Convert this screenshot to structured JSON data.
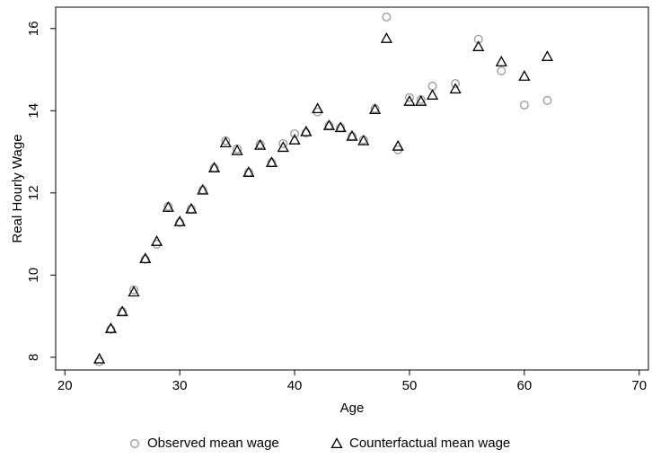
{
  "chart_data": {
    "type": "scatter",
    "x_label": "Age",
    "y_label": "Real Hourly Wage",
    "x": [
      23,
      24,
      25,
      26,
      27,
      28,
      29,
      30,
      31,
      32,
      33,
      34,
      35,
      36,
      37,
      38,
      39,
      40,
      41,
      42,
      43,
      44,
      45,
      46,
      47,
      48,
      49,
      50,
      51,
      52,
      54,
      56,
      58,
      60,
      62
    ],
    "series": [
      {
        "name": "Observed mean wage",
        "color": "#999999",
        "marker": "circle",
        "values": [
          7.89,
          8.68,
          9.11,
          9.64,
          10.38,
          10.75,
          11.67,
          11.28,
          11.61,
          12.07,
          12.61,
          13.27,
          13.07,
          12.5,
          13.18,
          12.74,
          13.2,
          13.44,
          13.46,
          13.97,
          13.64,
          13.59,
          13.38,
          13.29,
          14.05,
          16.28,
          13.05,
          14.32,
          14.27,
          14.6,
          14.66,
          15.74,
          14.97,
          14.14,
          14.25
        ]
      },
      {
        "name": "Counterfactual mean wage",
        "color": "#000000",
        "marker": "triangle",
        "values": [
          7.96,
          8.7,
          9.11,
          9.59,
          10.4,
          10.82,
          11.65,
          11.3,
          11.61,
          12.07,
          12.61,
          13.22,
          13.03,
          12.5,
          13.16,
          12.74,
          13.11,
          13.29,
          13.49,
          14.05,
          13.64,
          13.59,
          13.38,
          13.27,
          14.03,
          15.76,
          13.14,
          14.23,
          14.23,
          14.38,
          14.53,
          15.56,
          15.19,
          14.84,
          15.32
        ]
      }
    ],
    "xlim": [
      19.2,
      70.8
    ],
    "ylim": [
      7.69,
      16.52
    ],
    "xticks": [
      20,
      30,
      40,
      50,
      60,
      70
    ],
    "yticks": [
      8,
      10,
      12,
      14,
      16
    ],
    "legend": "bottom"
  }
}
